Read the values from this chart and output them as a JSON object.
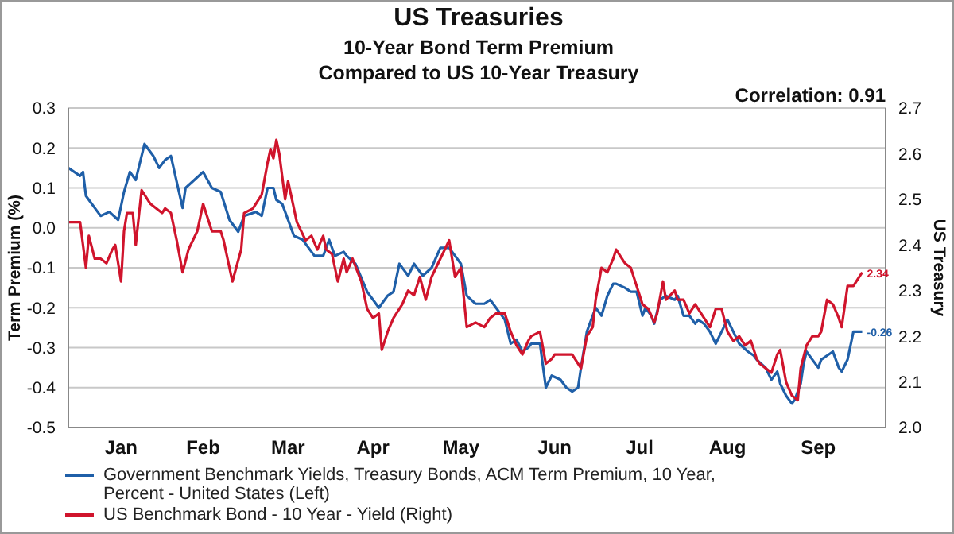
{
  "chart_data": {
    "type": "line",
    "title": "US Treasuries",
    "subtitle": "10-Year Bond Term Premium\nCompared to US 10-Year Treasury",
    "ylabel": "Term Premium (%)",
    "y2label": "US Treasury",
    "annotations": [
      "Correlation: 0.91"
    ],
    "xlim": [
      "--01-01",
      "--10-07"
    ],
    "xticks": [
      {
        "value": "--01-19",
        "label": "Jan"
      },
      {
        "value": "--02-16",
        "label": "Feb"
      },
      {
        "value": "--03-17",
        "label": "Mar"
      },
      {
        "value": "--04-15",
        "label": "Apr"
      },
      {
        "value": "--05-15",
        "label": "May"
      },
      {
        "value": "--06-16",
        "label": "Jun"
      },
      {
        "value": "--07-15",
        "label": "Jul"
      },
      {
        "value": "--08-14",
        "label": "Aug"
      },
      {
        "value": "--09-14",
        "label": "Sep"
      }
    ],
    "ylim": [
      -0.5,
      0.3
    ],
    "yticks": [
      -0.5,
      -0.4,
      -0.3,
      -0.2,
      -0.1,
      {
        "value": 0,
        "label": "0.0"
      },
      0.1,
      0.2,
      0.3
    ],
    "y2lim": [
      2.0,
      2.7
    ],
    "y2ticks": [
      {
        "value": 2,
        "label": "2.0"
      },
      2.1,
      2.2,
      2.3,
      2.4,
      2.5,
      2.6,
      2.7
    ],
    "grid": "y",
    "legend": "bottom",
    "series": [
      {
        "name": "Government Benchmark Yields, Treasury Bonds, ACM Term Premium, 10 Year, Percent - United States  (Left)",
        "color": "#1f5fa8",
        "x": [
          "--01-01",
          "--01-05",
          "--01-06",
          "--01-07",
          "--01-10",
          "--01-12",
          "--01-15",
          "--01-18",
          "--01-20",
          "--01-22",
          "--01-24",
          "--01-27",
          "--01-30",
          "--02-01",
          "--02-03",
          "--02-05",
          "--02-09",
          "--02-10",
          "--02-13",
          "--02-16",
          "--02-19",
          "--02-22",
          "--02-25",
          "--02-28",
          "--03-02",
          "--03-06",
          "--03-08",
          "--03-10",
          "--03-12",
          "--03-13",
          "--03-15",
          "--03-16",
          "--03-19",
          "--03-22",
          "--03-24",
          "--03-26",
          "--03-29",
          "--03-31",
          "--04-02",
          "--04-05",
          "--04-06",
          "--04-09",
          "--04-13",
          "--04-17",
          "--04-20",
          "--04-22",
          "--04-24",
          "--04-27",
          "--04-29",
          "--05-02",
          "--05-05",
          "--05-08",
          "--05-11",
          "--05-13",
          "--05-15",
          "--05-17",
          "--05-20",
          "--05-23",
          "--05-25",
          "--05-27",
          "--05-30",
          "--05-31",
          "--06-01",
          "--06-03",
          "--06-05",
          "--06-07",
          "--06-08",
          "--06-11",
          "--06-13",
          "--06-15",
          "--06-18",
          "--06-20",
          "--06-22",
          "--06-24",
          "--06-25",
          "--06-27",
          "--06-29",
          "--06-30",
          "--07-02",
          "--07-04",
          "--07-06",
          "--07-07",
          "--07-10",
          "--07-12",
          "--07-14",
          "--07-16",
          "--07-17",
          "--07-19",
          "--07-20",
          "--07-22",
          "--07-24",
          "--07-27",
          "--07-28",
          "--07-30",
          "--08-01",
          "--08-03",
          "--08-04",
          "--08-06",
          "--08-08",
          "--08-10",
          "--08-12",
          "--08-14",
          "--08-16",
          "--08-18",
          "--08-21",
          "--08-23",
          "--08-24",
          "--08-27",
          "--08-29",
          "--08-31",
          "--09-01",
          "--09-03",
          "--09-05",
          "--09-06",
          "--09-08",
          "--09-09",
          "--09-10",
          "--09-12",
          "--09-14",
          "--09-15",
          "--09-17",
          "--09-19",
          "--09-21",
          "--09-22",
          "--09-24",
          "--09-26",
          "--09-28",
          "--09-29"
        ],
        "values": [
          0.15,
          0.13,
          0.14,
          0.08,
          0.05,
          0.03,
          0.04,
          0.02,
          0.09,
          0.14,
          0.12,
          0.21,
          0.18,
          0.15,
          0.17,
          0.18,
          0.05,
          0.1,
          0.12,
          0.14,
          0.1,
          0.09,
          0.02,
          -0.01,
          0.03,
          0.04,
          0.03,
          0.1,
          0.1,
          0.07,
          0.06,
          0.04,
          -0.02,
          -0.03,
          -0.05,
          -0.07,
          -0.07,
          -0.03,
          -0.07,
          -0.06,
          -0.07,
          -0.09,
          -0.16,
          -0.2,
          -0.17,
          -0.16,
          -0.09,
          -0.12,
          -0.09,
          -0.12,
          -0.1,
          -0.05,
          -0.05,
          -0.07,
          -0.09,
          -0.17,
          -0.19,
          -0.19,
          -0.18,
          -0.2,
          -0.23,
          -0.26,
          -0.29,
          -0.28,
          -0.31,
          -0.3,
          -0.29,
          -0.29,
          -0.4,
          -0.37,
          -0.38,
          -0.4,
          -0.41,
          -0.4,
          -0.35,
          -0.26,
          -0.22,
          -0.2,
          -0.22,
          -0.17,
          -0.14,
          -0.14,
          -0.15,
          -0.16,
          -0.16,
          -0.22,
          -0.2,
          -0.22,
          -0.24,
          -0.18,
          -0.17,
          -0.18,
          -0.17,
          -0.22,
          -0.22,
          -0.24,
          -0.23,
          -0.24,
          -0.26,
          -0.29,
          -0.26,
          -0.23,
          -0.26,
          -0.29,
          -0.31,
          -0.32,
          -0.33,
          -0.35,
          -0.38,
          -0.36,
          -0.39,
          -0.42,
          -0.44,
          -0.43,
          -0.39,
          -0.34,
          -0.31,
          -0.33,
          -0.35,
          -0.33,
          -0.32,
          -0.31,
          -0.35,
          -0.36,
          -0.33,
          -0.26,
          -0.26,
          -0.26
        ],
        "value_labels": [
          null,
          null,
          null,
          null,
          null,
          null,
          null,
          null,
          null,
          null,
          null,
          null,
          null,
          null,
          null,
          null,
          null,
          null,
          null,
          null,
          null,
          null,
          null,
          null,
          null,
          null,
          null,
          null,
          null,
          null,
          null,
          null,
          null,
          null,
          null,
          null,
          null,
          null,
          null,
          null,
          null,
          null,
          null,
          null,
          null,
          null,
          null,
          null,
          null,
          null,
          null,
          null,
          null,
          null,
          null,
          null,
          null,
          null,
          null,
          null,
          null,
          null,
          null,
          null,
          null,
          null,
          null,
          null,
          null,
          null,
          null,
          null,
          null,
          null,
          null,
          null,
          null,
          null,
          null,
          null,
          null,
          null,
          null,
          null,
          null,
          null,
          null,
          null,
          null,
          null,
          null,
          null,
          null,
          null,
          null,
          null,
          null,
          null,
          null,
          null,
          null,
          null,
          null,
          null,
          null,
          null,
          null,
          null,
          null,
          null,
          null,
          null,
          null,
          null,
          null,
          null,
          null,
          null,
          null,
          null,
          null,
          null,
          null,
          null,
          null,
          null,
          null,
          "-0.26"
        ]
      },
      {
        "name": "US Benchmark Bond - 10 Year - Yield  (Right)",
        "color": "#d0142c",
        "axis": "y2",
        "x": [
          "--01-01",
          "--01-05",
          "--01-07",
          "--01-08",
          "--01-10",
          "--01-12",
          "--01-14",
          "--01-16",
          "--01-17",
          "--01-19",
          "--01-20",
          "--01-21",
          "--01-23",
          "--01-24",
          "--01-26",
          "--01-29",
          "--01-31",
          "--02-02",
          "--02-03",
          "--02-05",
          "--02-07",
          "--02-09",
          "--02-11",
          "--02-14",
          "--02-16",
          "--02-19",
          "--02-22",
          "--02-23",
          "--02-26",
          "--03-01",
          "--03-02",
          "--03-05",
          "--03-08",
          "--03-10",
          "--03-11",
          "--03-12",
          "--03-13",
          "--03-14",
          "--03-16",
          "--03-17",
          "--03-20",
          "--03-23",
          "--03-25",
          "--03-27",
          "--03-29",
          "--03-30",
          "--04-01",
          "--04-03",
          "--04-05",
          "--04-06",
          "--04-08",
          "--04-11",
          "--04-13",
          "--04-15",
          "--04-17",
          "--04-18",
          "--04-20",
          "--04-22",
          "--04-25",
          "--04-27",
          "--04-29",
          "--05-01",
          "--05-03",
          "--05-05",
          "--05-08",
          "--05-11",
          "--05-13",
          "--05-15",
          "--05-17",
          "--05-20",
          "--05-23",
          "--05-25",
          "--05-27",
          "--05-30",
          "--05-31",
          "--06-01",
          "--06-03",
          "--06-05",
          "--06-07",
          "--06-08",
          "--06-11",
          "--06-13",
          "--06-15",
          "--06-16",
          "--06-18",
          "--06-20",
          "--06-22",
          "--06-24",
          "--06-25",
          "--06-27",
          "--06-29",
          "--06-30",
          "--07-02",
          "--07-04",
          "--07-06",
          "--07-07",
          "--07-09",
          "--07-10",
          "--07-12",
          "--07-13",
          "--07-16",
          "--07-18",
          "--07-20",
          "--07-21",
          "--07-23",
          "--07-24",
          "--07-27",
          "--07-28",
          "--07-30",
          "--08-01",
          "--08-03",
          "--08-04",
          "--08-06",
          "--08-08",
          "--08-10",
          "--08-12",
          "--08-14",
          "--08-16",
          "--08-18",
          "--08-20",
          "--08-22",
          "--08-24",
          "--08-25",
          "--08-27",
          "--08-29",
          "--08-31",
          "--09-01",
          "--09-03",
          "--09-05",
          "--09-07",
          "--09-08",
          "--09-10",
          "--09-12",
          "--09-14",
          "--09-15",
          "--09-17",
          "--09-19",
          "--09-21",
          "--09-22",
          "--09-24",
          "--09-26",
          "--09-28",
          "--09-29"
        ],
        "values": [
          2.45,
          2.45,
          2.35,
          2.42,
          2.37,
          2.37,
          2.36,
          2.39,
          2.4,
          2.32,
          2.43,
          2.47,
          2.47,
          2.4,
          2.52,
          2.49,
          2.48,
          2.47,
          2.48,
          2.47,
          2.41,
          2.34,
          2.39,
          2.43,
          2.49,
          2.43,
          2.43,
          2.41,
          2.32,
          2.39,
          2.47,
          2.48,
          2.51,
          2.58,
          2.61,
          2.59,
          2.63,
          2.6,
          2.5,
          2.54,
          2.45,
          2.41,
          2.42,
          2.39,
          2.42,
          2.39,
          2.38,
          2.32,
          2.37,
          2.34,
          2.37,
          2.32,
          2.26,
          2.24,
          2.25,
          2.17,
          2.21,
          2.24,
          2.27,
          2.3,
          2.29,
          2.33,
          2.28,
          2.33,
          2.37,
          2.41,
          2.33,
          2.35,
          2.22,
          2.23,
          2.22,
          2.24,
          2.25,
          2.25,
          2.23,
          2.21,
          2.18,
          2.16,
          2.19,
          2.2,
          2.21,
          2.14,
          2.15,
          2.16,
          2.16,
          2.16,
          2.16,
          2.14,
          2.13,
          2.2,
          2.22,
          2.28,
          2.35,
          2.34,
          2.37,
          2.39,
          2.37,
          2.36,
          2.35,
          2.33,
          2.27,
          2.26,
          2.23,
          2.25,
          2.32,
          2.28,
          2.3,
          2.28,
          2.28,
          2.25,
          2.27,
          2.26,
          2.24,
          2.22,
          2.26,
          2.26,
          2.21,
          2.19,
          2.2,
          2.18,
          2.19,
          2.15,
          2.14,
          2.13,
          2.12,
          2.16,
          2.17,
          2.1,
          2.07,
          2.06,
          2.13,
          2.18,
          2.2,
          2.2,
          2.21,
          2.28,
          2.27,
          2.24,
          2.22,
          2.31,
          2.31,
          2.33,
          2.34
        ],
        "value_labels": [
          null,
          null,
          null,
          null,
          null,
          null,
          null,
          null,
          null,
          null,
          null,
          null,
          null,
          null,
          null,
          null,
          null,
          null,
          null,
          null,
          null,
          null,
          null,
          null,
          null,
          null,
          null,
          null,
          null,
          null,
          null,
          null,
          null,
          null,
          null,
          null,
          null,
          null,
          null,
          null,
          null,
          null,
          null,
          null,
          null,
          null,
          null,
          null,
          null,
          null,
          null,
          null,
          null,
          null,
          null,
          null,
          null,
          null,
          null,
          null,
          null,
          null,
          null,
          null,
          null,
          null,
          null,
          null,
          null,
          null,
          null,
          null,
          null,
          null,
          null,
          null,
          null,
          null,
          null,
          null,
          null,
          null,
          null,
          null,
          null,
          null,
          null,
          null,
          null,
          null,
          null,
          null,
          null,
          null,
          null,
          null,
          null,
          null,
          null,
          null,
          null,
          null,
          null,
          null,
          null,
          null,
          null,
          null,
          null,
          null,
          null,
          null,
          null,
          null,
          null,
          null,
          null,
          null,
          null,
          null,
          null,
          null,
          null,
          null,
          null,
          null,
          null,
          null,
          null,
          null,
          null,
          null,
          null,
          null,
          null,
          null,
          null,
          null,
          null,
          null,
          null,
          null,
          "2.34"
        ]
      }
    ]
  }
}
